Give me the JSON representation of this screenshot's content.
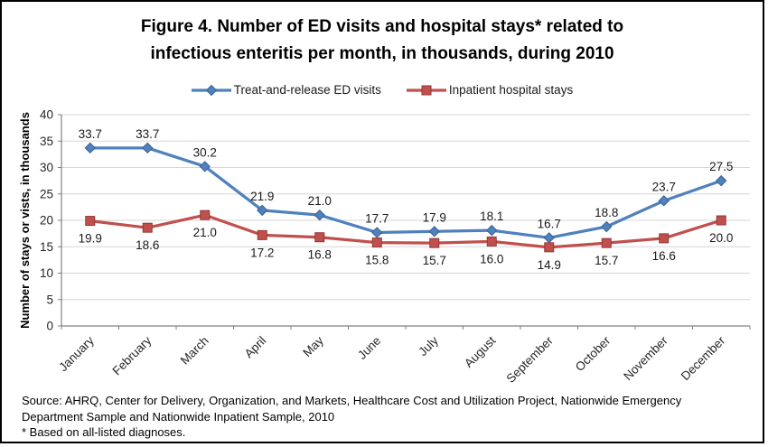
{
  "title": {
    "line1": "Figure 4. Number of ED visits and hospital stays* related to",
    "line2": "infectious enteritis per month, in thousands, during 2010"
  },
  "legend": {
    "items": [
      {
        "label": "Treat-and-release ED visits"
      },
      {
        "label": "Inpatient hospital stays"
      }
    ]
  },
  "chart_data": {
    "type": "line",
    "title": "Figure 4. Number of ED visits and hospital stays* related to infectious enteritis per month, in thousands, during 2010",
    "categories": [
      "January",
      "February",
      "March",
      "April",
      "May",
      "June",
      "July",
      "August",
      "September",
      "October",
      "November",
      "December"
    ],
    "series": [
      {
        "name": "Treat-and-release ED visits",
        "color": "#4F81BD",
        "marker_border": "#3A6293",
        "marker": "diamond",
        "label_position": "above",
        "values": [
          33.7,
          33.7,
          30.2,
          21.9,
          21.0,
          17.7,
          17.9,
          18.1,
          16.7,
          18.8,
          23.7,
          27.5
        ]
      },
      {
        "name": "Inpatient hospital stays",
        "color": "#C0504D",
        "marker_border": "#943634",
        "marker": "square",
        "label_position": "below",
        "values": [
          19.9,
          18.6,
          21.0,
          17.2,
          16.8,
          15.8,
          15.7,
          16.0,
          14.9,
          15.7,
          16.6,
          20.0
        ]
      }
    ],
    "xlabel": "",
    "ylabel": "Number of stays or vists, in thousands",
    "ylim": [
      0,
      40
    ],
    "ytick_step": 5,
    "grid": true,
    "legend_position": "top",
    "grid_color": "#D6D6D6",
    "axis_color": "#808080"
  },
  "footer": {
    "source_line1": "Source: AHRQ, Center for Delivery, Organization, and Markets, Healthcare Cost and Utilization Project, Nationwide Emergency",
    "source_line2": "Department Sample and Nationwide Inpatient Sample, 2010",
    "footnote": "* Based on all-listed diagnoses."
  }
}
